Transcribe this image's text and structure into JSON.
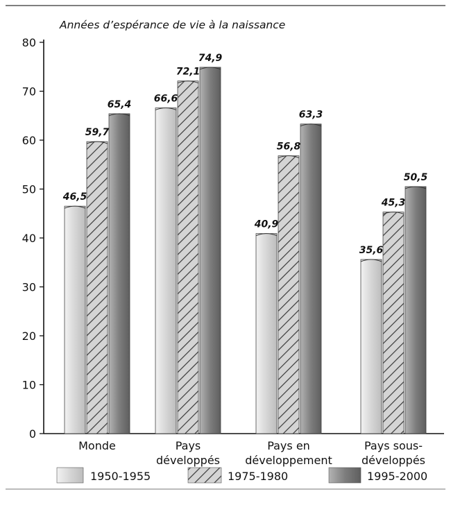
{
  "chart_data": {
    "type": "bar",
    "title": "",
    "ylabel": "Années d’espérance de vie à la naissance",
    "xlabel": "",
    "ylim": [
      0,
      80
    ],
    "yticks": [
      0,
      10,
      20,
      30,
      40,
      50,
      60,
      70,
      80
    ],
    "categories": [
      [
        "Monde"
      ],
      [
        "Pays",
        "développés"
      ],
      [
        "Pays en",
        "développement"
      ],
      [
        "Pays sous-",
        "développés"
      ]
    ],
    "series": [
      {
        "name": "1950-1955",
        "values": [
          46.5,
          66.6,
          40.9,
          35.6
        ],
        "labels": [
          "46,5",
          "66,6",
          "40,9",
          "35,6"
        ],
        "pattern": "light"
      },
      {
        "name": "1975-1980",
        "values": [
          59.7,
          72.1,
          56.8,
          45.3
        ],
        "labels": [
          "59,7",
          "72,1",
          "56,8",
          "45,3"
        ],
        "pattern": "hatched"
      },
      {
        "name": "1995-2000",
        "values": [
          65.4,
          74.9,
          63.3,
          50.5
        ],
        "labels": [
          "65,4",
          "74,9",
          "63,3",
          "50,5"
        ],
        "pattern": "dark"
      }
    ],
    "legend_position": "bottom",
    "grid": false,
    "colors": {
      "light": "#dcdcdc",
      "hatched": "#c4c4c4",
      "dark": "#8a8a8a",
      "hatch_line": "#3a3a3a",
      "axis": "#111111"
    }
  }
}
